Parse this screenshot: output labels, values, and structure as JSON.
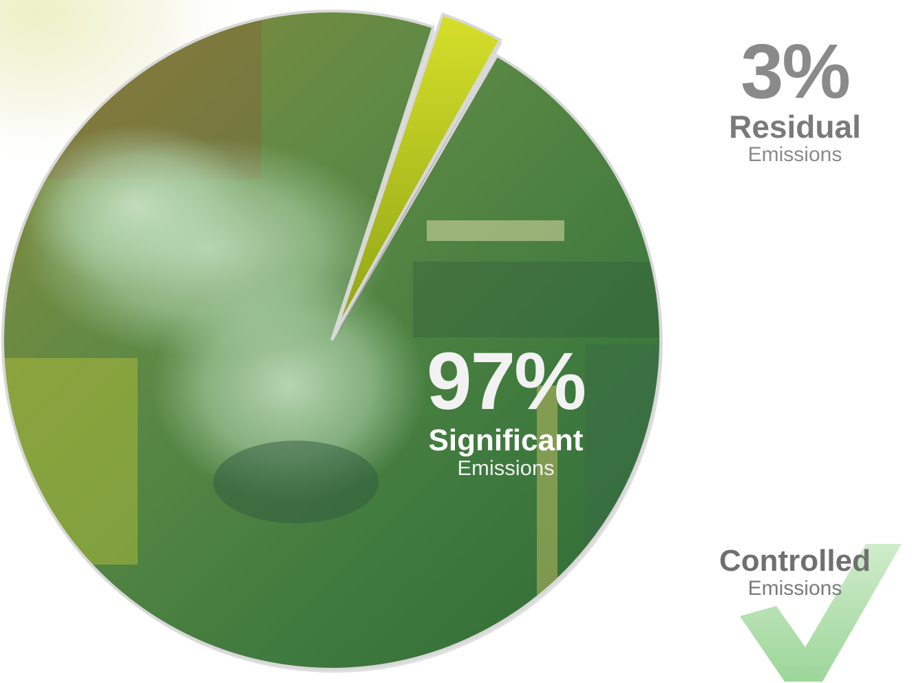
{
  "chart_data": {
    "type": "pie",
    "slices": [
      {
        "percent_label": "97%",
        "category": "Significant",
        "sublabel": "Emissions",
        "value": 97,
        "color": "#4f8a3c"
      },
      {
        "percent_label": "3%",
        "category": "Residual",
        "sublabel": "Emissions",
        "value": 3,
        "color": "#b9c41e"
      }
    ],
    "extra_label": {
      "category": "Controlled",
      "sublabel": "Emissions"
    }
  },
  "colors": {
    "leader_line": "#9a9a9a",
    "check_mark": "#a7d7a4",
    "slice_outline": "#d8d8d8"
  },
  "icons": {
    "check": "check-mark-icon"
  }
}
